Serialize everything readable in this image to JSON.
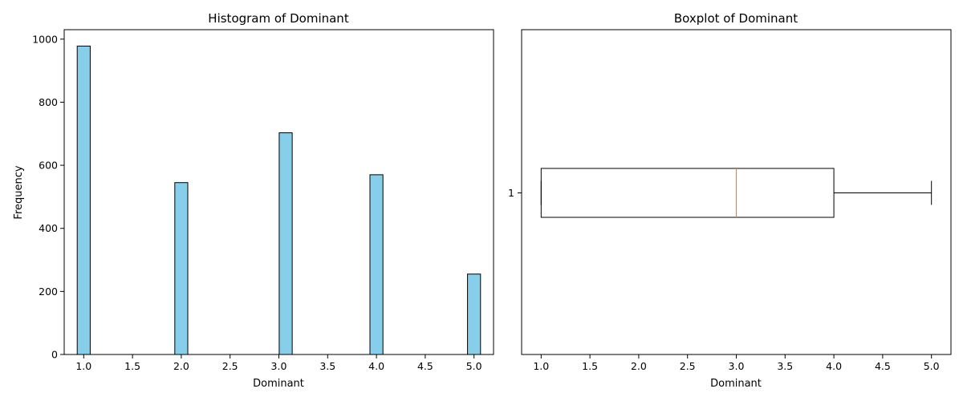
{
  "chart_data": [
    {
      "type": "bar",
      "title": "Histogram of Dominant",
      "xlabel": "Dominant",
      "ylabel": "Frequency",
      "bins": [
        {
          "x": 1.0,
          "count": 978
        },
        {
          "x": 2.0,
          "count": 545
        },
        {
          "x": 3.07,
          "count": 703
        },
        {
          "x": 4.0,
          "count": 570
        },
        {
          "x": 5.0,
          "count": 255
        }
      ],
      "bin_width": 0.1333,
      "xlim": [
        0.8,
        5.2
      ],
      "ylim": [
        0,
        1030
      ],
      "xticks": [
        "1.0",
        "1.5",
        "2.0",
        "2.5",
        "3.0",
        "3.5",
        "4.0",
        "4.5",
        "5.0"
      ],
      "yticks": [
        "0",
        "200",
        "400",
        "600",
        "800",
        "1000"
      ],
      "bar_color": "#87CEEB",
      "edge_color": "#000000",
      "grid": false
    },
    {
      "type": "boxplot",
      "title": "Boxplot of Dominant",
      "xlabel": "Dominant",
      "orientation": "horizontal",
      "category_label": "1",
      "stats": {
        "whisker_low": 1.0,
        "q1": 1.0,
        "median": 3.0,
        "q3": 4.0,
        "whisker_high": 5.0
      },
      "xlim": [
        0.8,
        5.2
      ],
      "xticks": [
        "1.0",
        "1.5",
        "2.0",
        "2.5",
        "3.0",
        "3.5",
        "4.0",
        "4.5",
        "5.0"
      ],
      "median_color": "#FF7F0E",
      "box_color": "#000000",
      "grid": false
    }
  ]
}
